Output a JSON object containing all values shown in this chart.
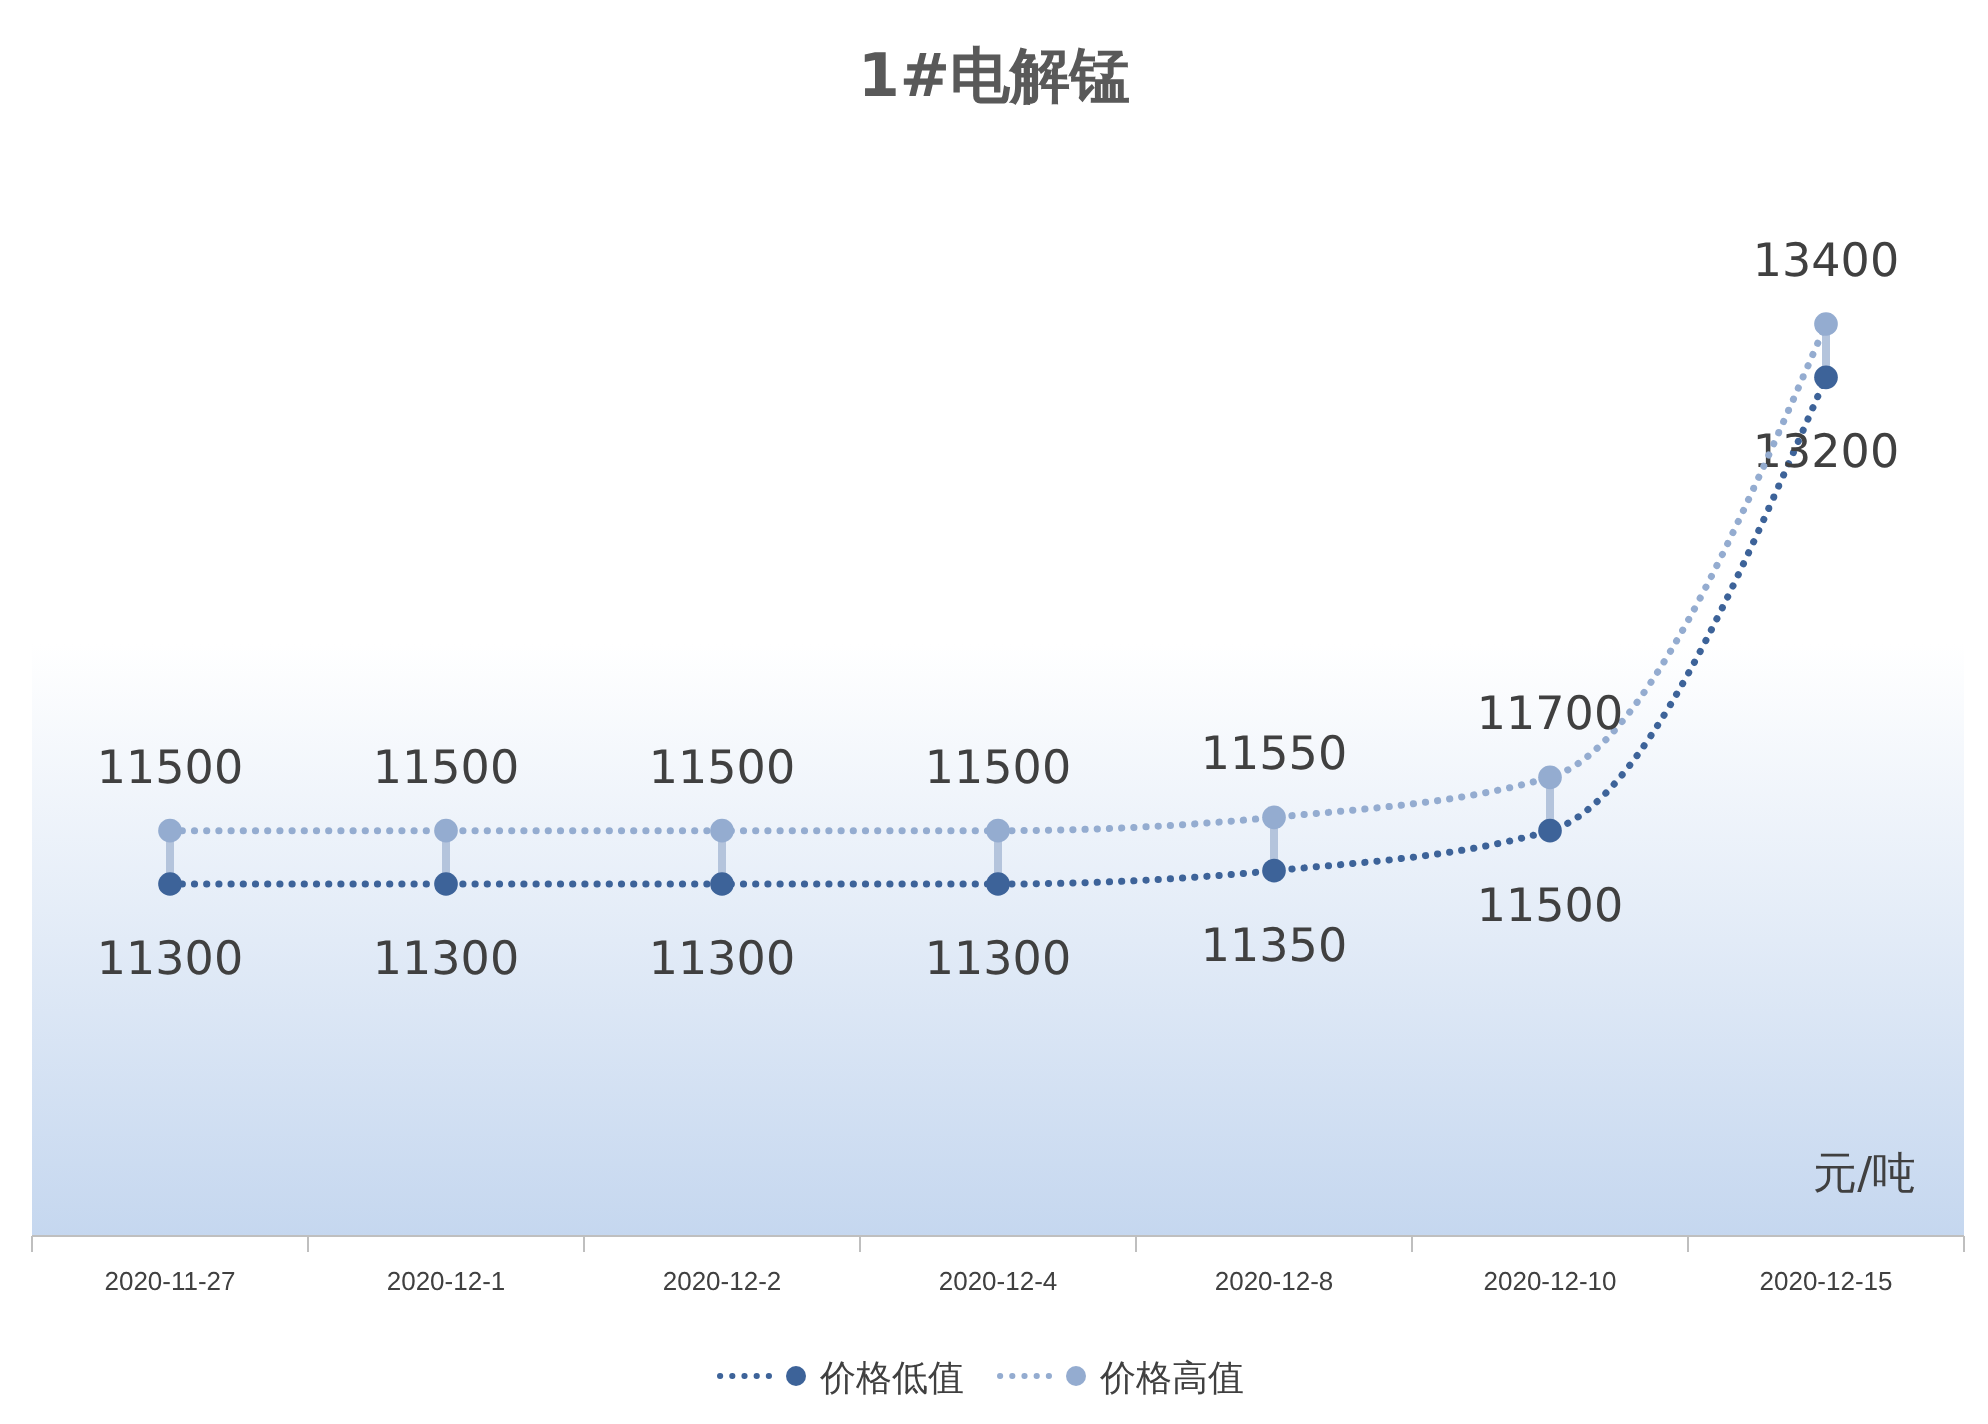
{
  "chart_data": {
    "type": "line",
    "title": "1#电解锰",
    "annotations": [
      "元/吨"
    ],
    "categories": [
      "2020-11-27",
      "2020-12-1",
      "2020-12-2",
      "2020-12-4",
      "2020-12-8",
      "2020-12-10",
      "2020-12-15"
    ],
    "series": [
      {
        "name": "价格低值",
        "color": "#3d6399",
        "values": [
          11300,
          11300,
          11300,
          11300,
          11350,
          11500,
          13200
        ]
      },
      {
        "name": "价格高值",
        "color": "#94acd0",
        "values": [
          11500,
          11500,
          11500,
          11500,
          11550,
          11700,
          13400
        ]
      }
    ],
    "tick_labels": "x",
    "data_labels": true,
    "legend": "bottom",
    "marker": "circle",
    "line_style": "dotted"
  }
}
